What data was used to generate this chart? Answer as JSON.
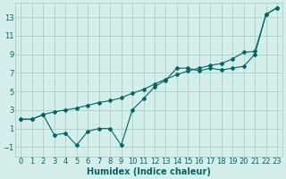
{
  "title": "",
  "xlabel": "Humidex (Indice chaleur)",
  "ylabel": "",
  "background_color": "#d4eeea",
  "grid_color": "#b0cec8",
  "line_color": "#006666",
  "x_smooth": [
    0,
    1,
    2,
    3,
    4,
    5,
    6,
    7,
    8,
    9,
    10,
    11,
    12,
    13,
    14,
    15,
    16,
    17,
    18,
    19,
    20,
    21,
    22,
    23
  ],
  "y_smooth": [
    2.0,
    2.0,
    2.5,
    2.8,
    3.0,
    3.2,
    3.5,
    3.8,
    4.0,
    4.3,
    4.8,
    5.2,
    5.8,
    6.3,
    6.8,
    7.2,
    7.5,
    7.8,
    8.0,
    8.5,
    9.2,
    9.3,
    13.3,
    14.0
  ],
  "x_jagged": [
    0,
    1,
    2,
    3,
    4,
    5,
    6,
    7,
    8,
    9,
    10,
    11,
    12,
    13,
    14,
    15,
    16,
    17,
    18,
    19,
    20,
    21,
    22,
    23
  ],
  "y_jagged": [
    2.0,
    2.0,
    2.5,
    0.3,
    0.5,
    -0.8,
    0.7,
    1.0,
    1.0,
    -0.8,
    3.0,
    4.2,
    5.5,
    6.2,
    7.5,
    7.5,
    7.2,
    7.5,
    7.3,
    7.5,
    7.7,
    9.0,
    13.3,
    14.0
  ],
  "xlim": [
    -0.5,
    23.5
  ],
  "ylim": [
    -2.0,
    14.5
  ],
  "yticks": [
    -1,
    1,
    3,
    5,
    7,
    9,
    11,
    13
  ],
  "xticks": [
    0,
    1,
    2,
    3,
    4,
    5,
    6,
    7,
    8,
    9,
    10,
    11,
    12,
    13,
    14,
    15,
    16,
    17,
    18,
    19,
    20,
    21,
    22,
    23
  ],
  "font_color": "#006666",
  "font_size": 6,
  "marker": "D",
  "marker_size": 2.0,
  "line_width": 0.8
}
